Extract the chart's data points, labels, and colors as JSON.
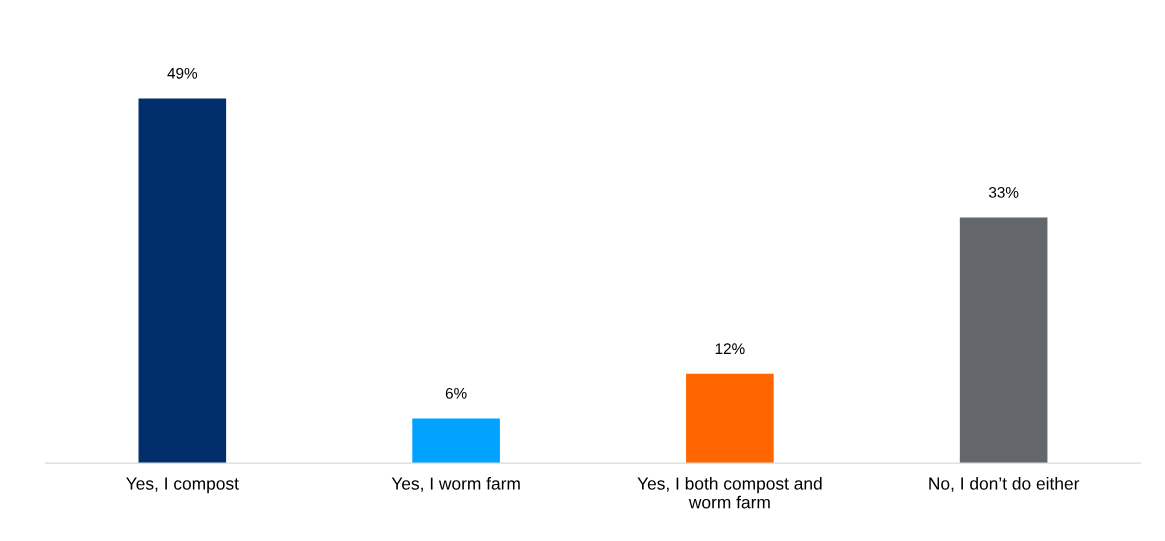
{
  "chart_data": {
    "type": "bar",
    "categories": [
      "Yes, I compost",
      "Yes, I worm farm",
      "Yes, I both compost and\nworm farm",
      "No, I don’t do either"
    ],
    "values": [
      49,
      6,
      12,
      33
    ],
    "colors": [
      "#002f6c",
      "#00a3ff",
      "#ff6600",
      "#63666a"
    ],
    "value_labels": [
      "49%",
      "6%",
      "12%",
      "33%"
    ]
  }
}
